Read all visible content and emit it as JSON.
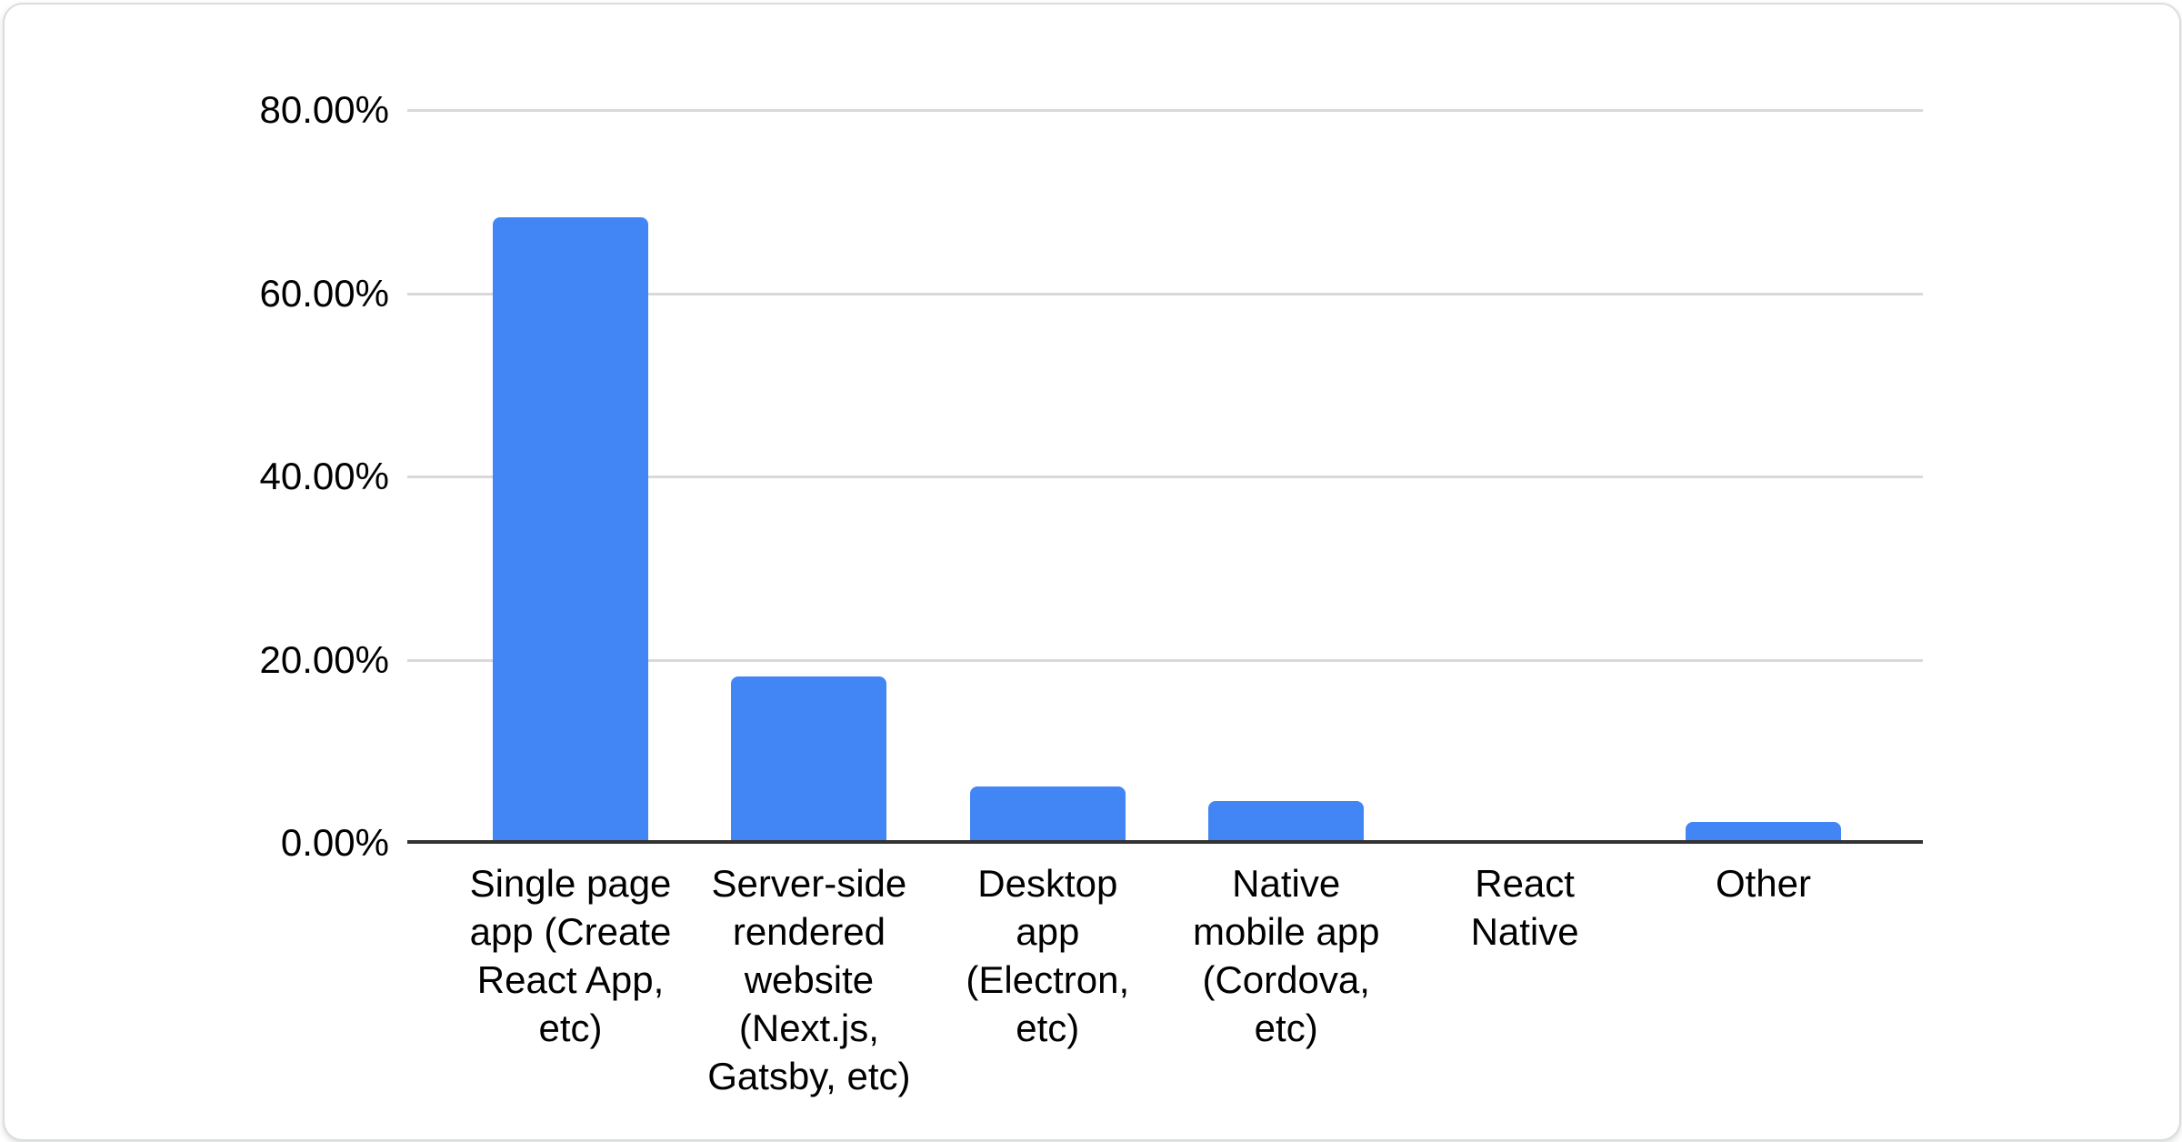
{
  "chart_data": {
    "type": "bar",
    "title": "",
    "xlabel": "",
    "ylabel": "",
    "legend": "none",
    "grid": "horizontal",
    "ylim": [
      0,
      80
    ],
    "yticks": [
      {
        "label": "80.00%",
        "value": 80
      },
      {
        "label": "60.00%",
        "value": 60
      },
      {
        "label": "40.00%",
        "value": 40
      },
      {
        "label": "20.00%",
        "value": 20
      },
      {
        "label": "0.00%",
        "value": 0
      }
    ],
    "categories": [
      "Single page app (Create React App, etc)",
      "Server-side rendered website (Next.js, Gatsby, etc)",
      "Desktop app (Electron, etc)",
      "Native mobile app (Cordova, etc)",
      "React Native",
      "Other"
    ],
    "category_lines": [
      [
        "Single page",
        "app (Create",
        "React App,",
        "etc)"
      ],
      [
        "Server-side",
        "rendered",
        "website",
        "(Next.js,",
        "Gatsby, etc)"
      ],
      [
        "Desktop",
        "app",
        "(Electron,",
        "etc)"
      ],
      [
        "Native",
        "mobile app",
        "(Cordova,",
        "etc)"
      ],
      [
        "React",
        "Native"
      ],
      [
        "Other"
      ]
    ],
    "values": [
      68.3,
      18.2,
      6.2,
      4.6,
      0,
      2.3
    ],
    "unit": "%",
    "colors": {
      "bar": "#4285f4",
      "axis_line": "#333333",
      "gridline": "#d9d9d9",
      "label_text": "#000000",
      "card_background": "#ffffff",
      "card_border": "#d9dce1"
    }
  }
}
